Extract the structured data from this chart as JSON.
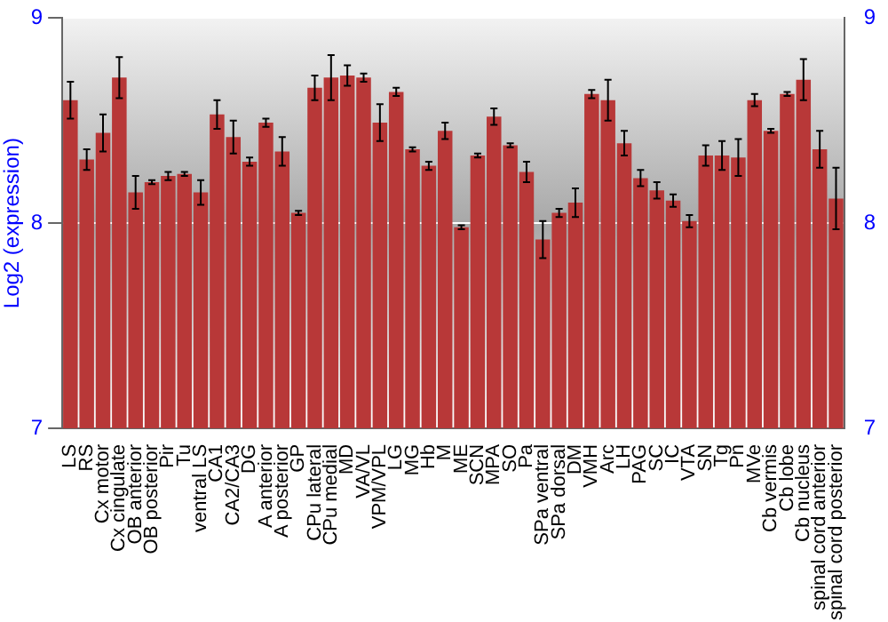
{
  "chart_data": {
    "type": "bar",
    "ylabel": "Log2 (expression)",
    "categories": [
      "LS",
      "RS",
      "Cx motor",
      "Cx cingulate",
      "OB anterior",
      "OB posterior",
      "Pir",
      "Tu",
      "ventral LS",
      "CA1",
      "CA2/CA3",
      "DG",
      "A anterior",
      "A posterior",
      "GP",
      "CPu lateral",
      "CPu medial",
      "MD",
      "VA/VL",
      "VPM/VPL",
      "LG",
      "MG",
      "Hb",
      "M",
      "ME",
      "SCN",
      "MPA",
      "SO",
      "Pa",
      "SPa ventral",
      "SPa dorsal",
      "DM",
      "VMH",
      "Arc",
      "LH",
      "PAG",
      "SC",
      "IC",
      "VTA",
      "SN",
      "Tg",
      "Pn",
      "MVe",
      "Cb vermis",
      "Cb lobe",
      "Cb nucleus",
      "spinal cord anterior",
      "spinal cord posterior"
    ],
    "values": [
      8.6,
      8.31,
      8.44,
      8.71,
      8.15,
      8.2,
      8.23,
      8.24,
      8.15,
      8.53,
      8.42,
      8.3,
      8.49,
      8.35,
      8.05,
      8.66,
      8.71,
      8.72,
      8.71,
      8.49,
      8.64,
      8.36,
      8.28,
      8.45,
      7.98,
      8.33,
      8.52,
      8.38,
      8.25,
      7.92,
      8.05,
      8.1,
      8.63,
      8.6,
      8.39,
      8.22,
      8.16,
      8.11,
      8.01,
      8.33,
      8.33,
      8.32,
      8.6,
      8.45,
      8.63,
      8.7,
      8.36,
      8.12
    ],
    "errors": [
      0.09,
      0.05,
      0.09,
      0.1,
      0.08,
      0.01,
      0.02,
      0.01,
      0.06,
      0.07,
      0.08,
      0.02,
      0.02,
      0.07,
      0.01,
      0.06,
      0.11,
      0.05,
      0.02,
      0.09,
      0.02,
      0.01,
      0.02,
      0.04,
      0.01,
      0.01,
      0.04,
      0.01,
      0.05,
      0.09,
      0.02,
      0.07,
      0.02,
      0.1,
      0.06,
      0.04,
      0.04,
      0.03,
      0.03,
      0.05,
      0.07,
      0.09,
      0.03,
      0.01,
      0.01,
      0.1,
      0.09,
      0.15
    ],
    "color": "#b83838",
    "ylim": [
      7,
      9
    ],
    "yticks": [
      7,
      8,
      9
    ],
    "y2lim": [
      7,
      9
    ],
    "y2ticks": [
      7,
      8,
      9
    ],
    "grid": "y",
    "legend": false
  }
}
